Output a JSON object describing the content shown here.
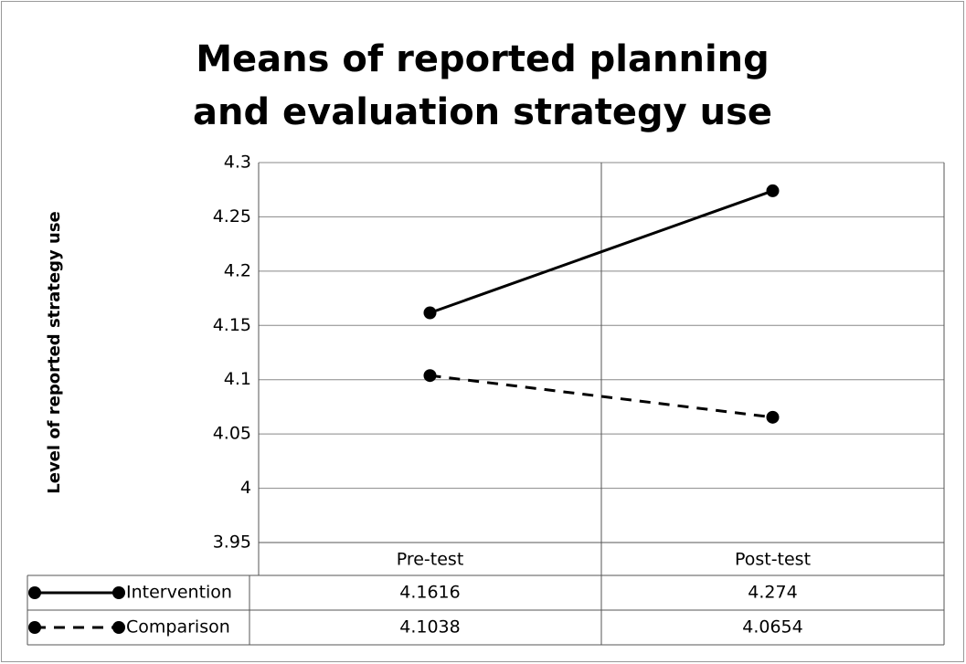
{
  "chart_data": {
    "type": "line",
    "title": "Means of reported planning and evaluation strategy use",
    "y_label": "Level of reported strategy use",
    "categories": [
      "Pre-test",
      "Post-test"
    ],
    "series": [
      {
        "name": "Intervention",
        "color": "#000000",
        "line_style": "solid",
        "values": [
          4.1616,
          4.274
        ]
      },
      {
        "name": "Comparison",
        "color": "#000000",
        "line_style": "dashed",
        "values": [
          4.1038,
          4.0654
        ]
      }
    ],
    "ylim": [
      3.95,
      4.3
    ],
    "yticks": [
      3.95,
      4,
      4.05,
      4.1,
      4.15,
      4.2,
      4.25,
      4.3
    ],
    "grid": true,
    "data_table": true
  }
}
